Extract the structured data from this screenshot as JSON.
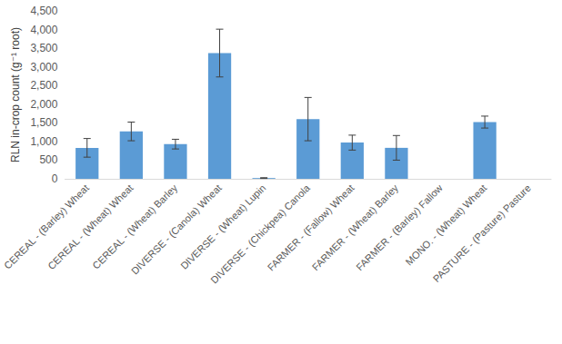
{
  "chart_data": {
    "type": "bar",
    "y_label": "RLN in-crop count (g⁻¹ root)",
    "categories": [
      "CEREAL - (Barley) Wheat",
      "CEREAL - (Wheat) Wheat",
      "CEREAL - (Wheat) Barley",
      "DIVERSE - (Canola) Wheat",
      "DIVERSE - (Wheat) Lupin",
      "DIVERSE - (Chickpea) Canola",
      "FARMER - (Fallow) Wheat",
      "FARMER - (Wheat) Barley",
      "FARMER - (Barley) Fallow",
      "MONO. - (Wheat) Wheat",
      "PASTURE - (Pasture) Pasture"
    ],
    "values": [
      830,
      1270,
      930,
      3370,
      20,
      1600,
      970,
      830,
      0,
      1520,
      0
    ],
    "errors": [
      250,
      250,
      130,
      640,
      10,
      580,
      200,
      330,
      null,
      160,
      null
    ],
    "color": "#5b9bd5",
    "ylim": [
      0,
      4500
    ],
    "yticks": [
      0,
      500,
      1000,
      1500,
      2000,
      2500,
      3000,
      3500,
      4000,
      4500
    ],
    "grid": false
  }
}
